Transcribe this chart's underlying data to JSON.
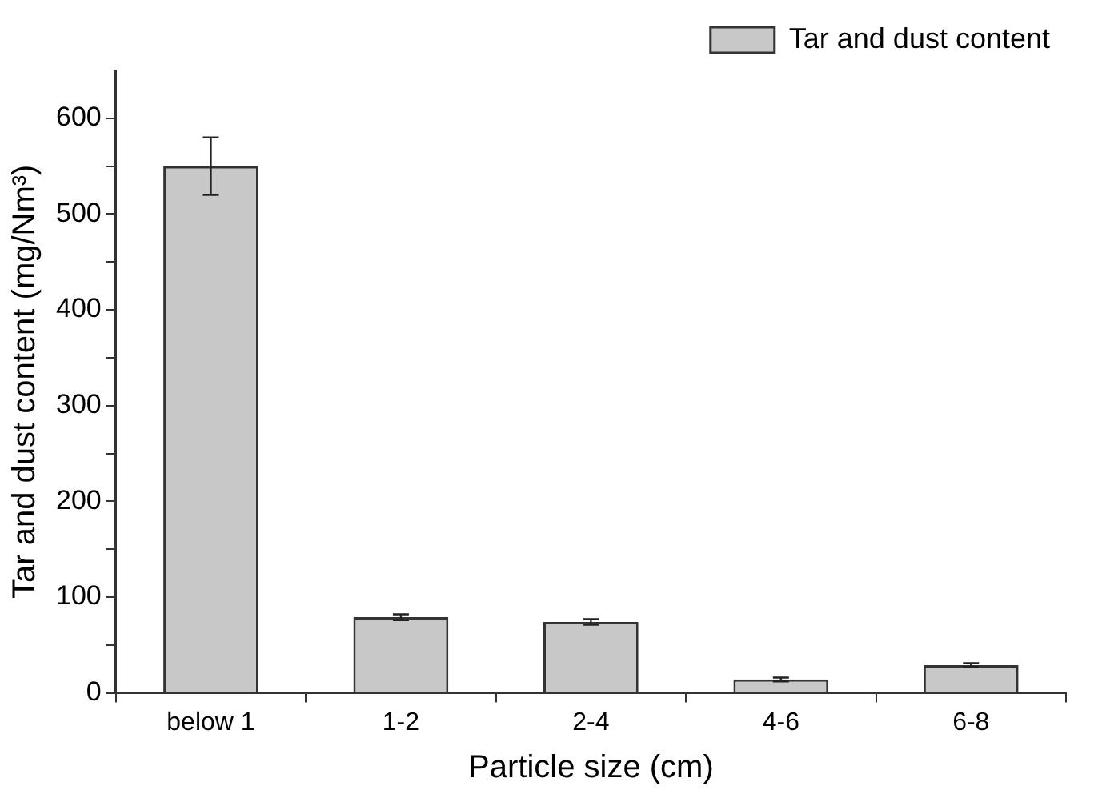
{
  "chart_data": {
    "type": "bar",
    "xlabel": "Particle size (cm)",
    "ylabel": "Tar and dust content (mg/Nm³)",
    "categories": [
      "below 1",
      "1-2",
      "2-4",
      "4-6",
      "6-8"
    ],
    "series": [
      {
        "name": "Tar and dust content",
        "color": "#c8c8c8",
        "values": [
          550,
          79,
          74,
          14,
          29
        ],
        "errors": [
          30,
          3,
          3,
          2,
          2
        ]
      }
    ],
    "ylim": [
      0,
      650
    ],
    "yticks": [
      0,
      {
        "value": 50,
        "label": null
      },
      100,
      {
        "value": 150,
        "label": null
      },
      200,
      {
        "value": 250,
        "label": null
      },
      300,
      {
        "value": 350,
        "label": null
      },
      400,
      {
        "value": 450,
        "label": null
      },
      500,
      {
        "value": 550,
        "label": null
      },
      600
    ],
    "grid": false,
    "legend": "top right"
  }
}
